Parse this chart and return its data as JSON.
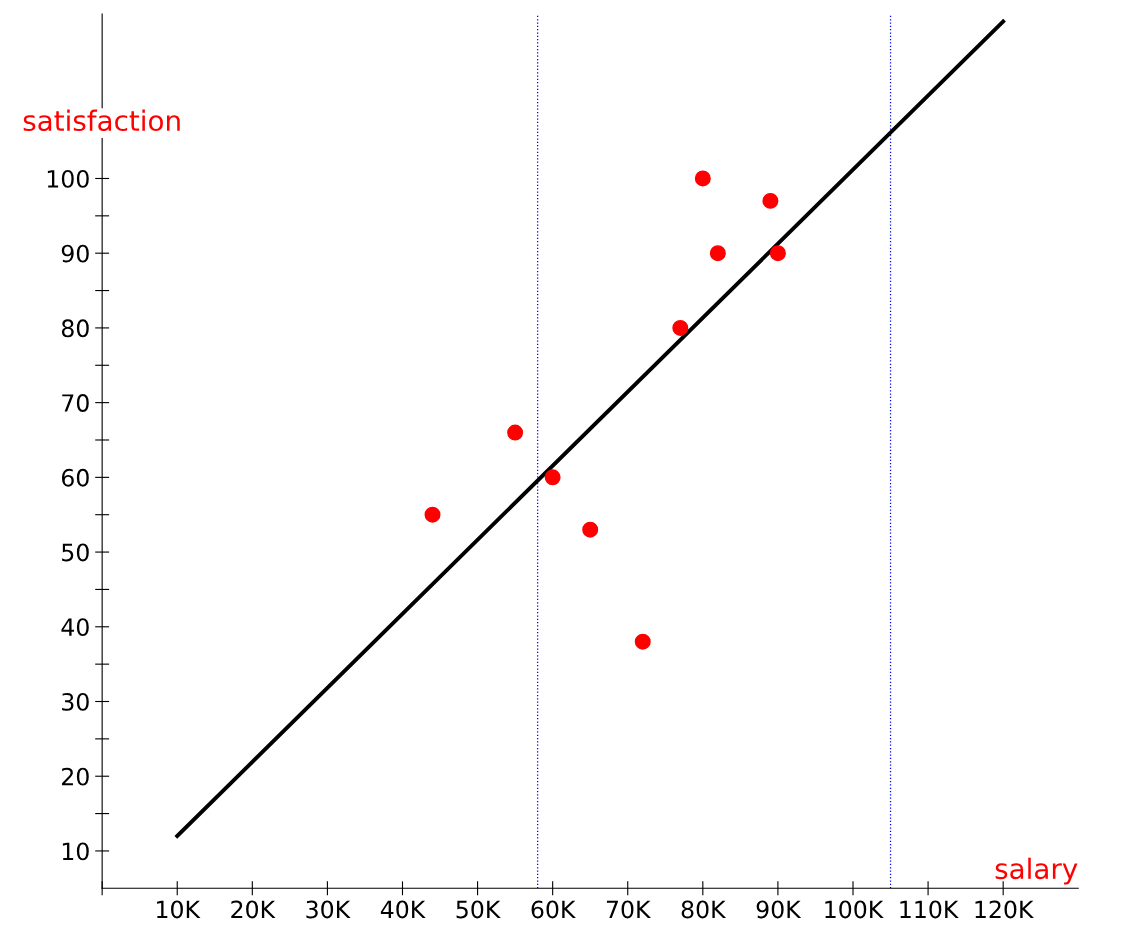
{
  "chart_data": {
    "type": "scatter",
    "xlabel": "salary",
    "ylabel": "satisfaction",
    "xlim": [
      0,
      130000
    ],
    "ylim": [
      5,
      122
    ],
    "xticks": [
      {
        "value": 0,
        "label": null
      },
      {
        "value": 10000,
        "label": "10K"
      },
      {
        "value": 20000,
        "label": "20K"
      },
      {
        "value": 30000,
        "label": "30K"
      },
      {
        "value": 40000,
        "label": "40K"
      },
      {
        "value": 50000,
        "label": "50K"
      },
      {
        "value": 60000,
        "label": "60K"
      },
      {
        "value": 70000,
        "label": "70K"
      },
      {
        "value": 80000,
        "label": "80K"
      },
      {
        "value": 90000,
        "label": "90K"
      },
      {
        "value": 100000,
        "label": "100K"
      },
      {
        "value": 110000,
        "label": "110K"
      },
      {
        "value": 120000,
        "label": "120K"
      }
    ],
    "yticks": [
      10,
      {
        "value": 15,
        "label": null
      },
      20,
      {
        "value": 25,
        "label": null
      },
      30,
      {
        "value": 35,
        "label": null
      },
      40,
      {
        "value": 45,
        "label": null
      },
      50,
      {
        "value": 55,
        "label": null
      },
      60,
      {
        "value": 65,
        "label": null
      },
      70,
      {
        "value": 75,
        "label": null
      },
      80,
      {
        "value": 85,
        "label": null
      },
      90,
      {
        "value": 95,
        "label": null
      },
      100
    ],
    "grid": false,
    "legend": false,
    "series": [
      {
        "marker": "circle",
        "color": "#ff0000",
        "x": [
          44000,
          55000,
          60000,
          65000,
          72000,
          77000,
          80000,
          82000,
          89000,
          90000
        ],
        "values": [
          55,
          66,
          60,
          53,
          38,
          80,
          100,
          90,
          97,
          90
        ]
      },
      {
        "type": "line",
        "color": "#000000",
        "line_style": "solid",
        "x": [
          10000,
          120000
        ],
        "values": [
          12,
          121
        ]
      }
    ],
    "ref_lines": [
      {
        "axis": "x",
        "value": 58000,
        "color": "#0000ff",
        "line_style": "dotted"
      },
      {
        "axis": "x",
        "value": 105000,
        "color": "#0000ff",
        "line_style": "dotted"
      }
    ]
  }
}
